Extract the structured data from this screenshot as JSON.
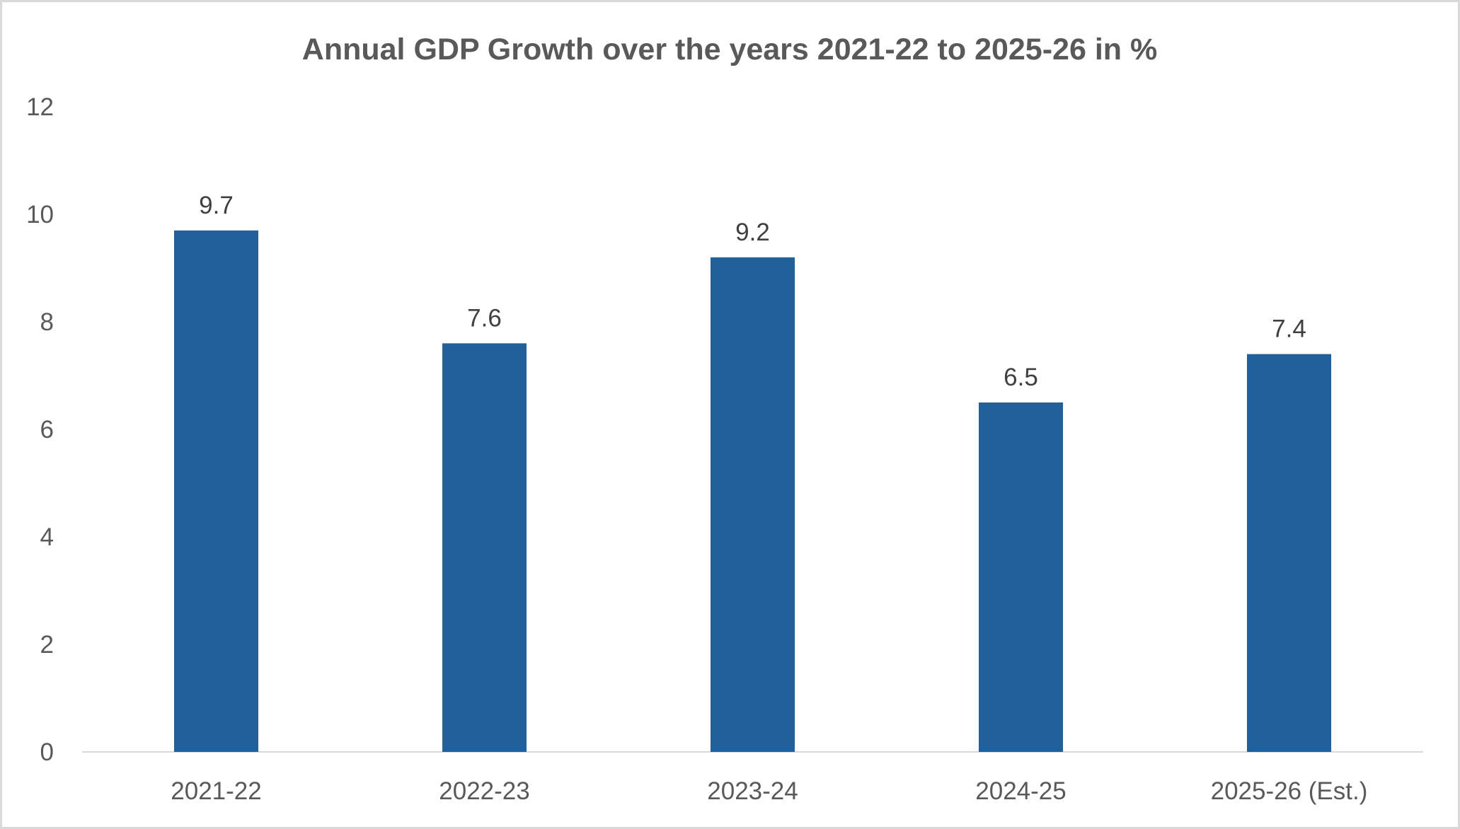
{
  "chart_data": {
    "type": "bar",
    "title": "Annual GDP Growth over the years 2021-22 to 2025-26 in %",
    "categories": [
      "2021-22",
      "2022-23",
      "2023-24",
      "2024-25",
      "2025-26 (Est.)"
    ],
    "values": [
      9.7,
      7.6,
      9.2,
      6.5,
      7.4
    ],
    "data_labels": [
      "9.7",
      "7.6",
      "9.2",
      "6.5",
      "7.4"
    ],
    "xlabel": "",
    "ylabel": "",
    "ylim": [
      0,
      12
    ],
    "yticks": [
      "0",
      "2",
      "4",
      "6",
      "8",
      "10",
      "12"
    ],
    "grid": false,
    "legend": "none",
    "bar_color": "#21609B"
  }
}
